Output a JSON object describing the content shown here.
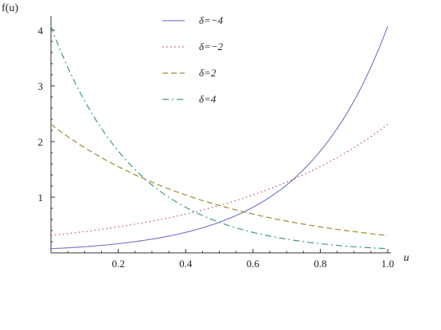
{
  "chart_data": {
    "type": "line",
    "title": "",
    "xlabel": "u",
    "ylabel": "f(u)",
    "xlim": [
      0,
      1
    ],
    "ylim": [
      0,
      4.2
    ],
    "x_ticks": [
      0.2,
      0.4,
      0.6,
      0.8,
      1.0
    ],
    "x_tick_labels": [
      "0.2",
      "0.4",
      "0.6",
      "0.8",
      "1.0"
    ],
    "y_ticks": [
      1,
      2,
      3,
      4
    ],
    "y_tick_labels": [
      "1",
      "2",
      "3",
      "4"
    ],
    "grid": false,
    "legend_position": "top-center",
    "series": [
      {
        "name": "δ=−4",
        "color": "#7b7bd0",
        "style": "solid",
        "x": [
          0,
          0.1,
          0.2,
          0.3,
          0.4,
          0.5,
          0.6,
          0.7,
          0.8,
          0.9,
          1.0
        ],
        "values": [
          0.075,
          0.11,
          0.165,
          0.247,
          0.368,
          0.55,
          0.82,
          1.22,
          1.83,
          2.73,
          4.07
        ]
      },
      {
        "name": "δ=−2",
        "color": "#c04a5a",
        "style": "dotted",
        "x": [
          0,
          0.1,
          0.2,
          0.3,
          0.4,
          0.5,
          0.6,
          0.7,
          0.8,
          0.9,
          1.0
        ],
        "values": [
          0.313,
          0.382,
          0.467,
          0.57,
          0.697,
          0.851,
          1.04,
          1.27,
          1.55,
          1.89,
          2.31
        ]
      },
      {
        "name": "δ=2",
        "color": "#a08a30",
        "style": "dashed",
        "x": [
          0,
          0.1,
          0.2,
          0.3,
          0.4,
          0.5,
          0.6,
          0.7,
          0.8,
          0.9,
          1.0
        ],
        "values": [
          2.31,
          1.89,
          1.55,
          1.27,
          1.04,
          0.851,
          0.697,
          0.57,
          0.467,
          0.382,
          0.313
        ]
      },
      {
        "name": "δ=4",
        "color": "#3a9a80",
        "style": "dashdot",
        "x": [
          0,
          0.1,
          0.2,
          0.3,
          0.4,
          0.5,
          0.6,
          0.7,
          0.8,
          0.9,
          1.0
        ],
        "values": [
          4.07,
          2.73,
          1.83,
          1.22,
          0.82,
          0.55,
          0.368,
          0.247,
          0.165,
          0.11,
          0.075
        ]
      }
    ]
  }
}
